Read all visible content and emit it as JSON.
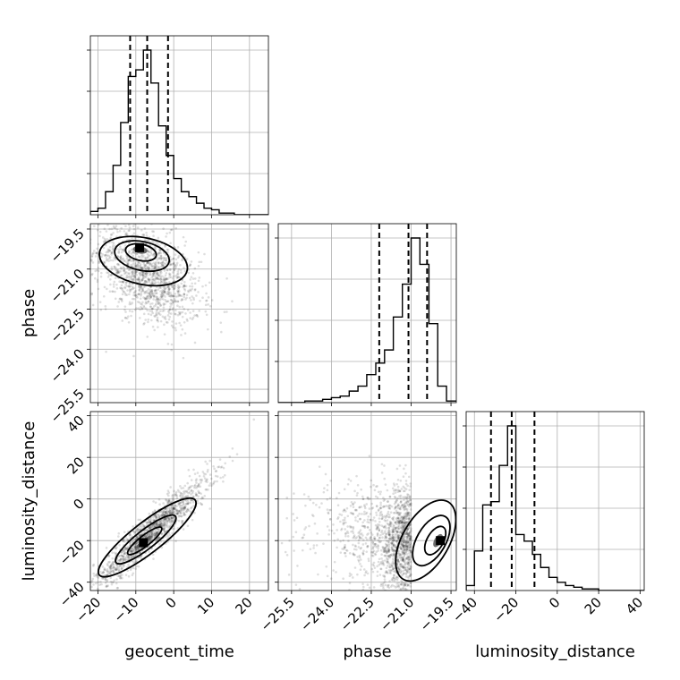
{
  "chart_data": {
    "type": "corner",
    "parameters": [
      {
        "label": "geocent_time",
        "range": [
          -22,
          25
        ],
        "ticks": [
          -20,
          -10,
          0,
          10,
          20
        ],
        "tick_labels": [
          "−20",
          "−10",
          "0",
          "10",
          "20"
        ],
        "quantiles": [
          -11.5,
          -7,
          -1.5
        ]
      },
      {
        "label": "phase",
        "range": [
          -26,
          -19.3
        ],
        "ticks": [
          -25.5,
          -24.0,
          -22.5,
          -21.0,
          -19.5
        ],
        "tick_labels": [
          "−25.5",
          "−24.0",
          "−22.5",
          "−21.0",
          "−19.5"
        ],
        "quantiles": [
          -22.2,
          -21.1,
          -20.4
        ]
      },
      {
        "label": "luminosity_distance",
        "range": [
          -44,
          42
        ],
        "ticks": [
          -40,
          -20,
          0,
          20,
          40
        ],
        "tick_labels": [
          "−40",
          "−20",
          "0",
          "20",
          "40"
        ],
        "quantiles": [
          -32,
          -22,
          -11
        ]
      }
    ],
    "histograms": [
      {
        "param": 0,
        "bin_edges": [
          -22,
          -20,
          -18,
          -16,
          -14,
          -12,
          -10,
          -8,
          -6,
          -4,
          -2,
          0,
          2,
          4,
          6,
          8,
          10,
          12,
          14,
          16,
          18,
          20,
          22,
          25
        ],
        "counts": [
          0.02,
          0.04,
          0.14,
          0.3,
          0.56,
          0.84,
          0.88,
          1.0,
          0.8,
          0.54,
          0.36,
          0.22,
          0.14,
          0.11,
          0.07,
          0.04,
          0.03,
          0.01,
          0.01,
          0,
          0,
          0,
          0
        ]
      },
      {
        "param": 1,
        "bin_edges": [
          -26,
          -25.67,
          -25.33,
          -25,
          -24.67,
          -24.33,
          -24,
          -23.67,
          -23.33,
          -23,
          -22.67,
          -22.33,
          -22,
          -21.67,
          -21.33,
          -21,
          -20.67,
          -20.33,
          -20,
          -19.67,
          -19.3
        ],
        "counts": [
          0,
          0,
          0,
          0.01,
          0.01,
          0.02,
          0.03,
          0.04,
          0.07,
          0.1,
          0.17,
          0.24,
          0.32,
          0.52,
          0.72,
          1.0,
          0.84,
          0.48,
          0.1,
          0.01
        ]
      },
      {
        "param": 2,
        "bin_edges": [
          -44,
          -40,
          -36,
          -32,
          -28,
          -24,
          -20,
          -16,
          -12,
          -8,
          -4,
          0,
          4,
          8,
          12,
          16,
          20,
          24,
          28,
          32,
          36,
          40,
          42
        ],
        "counts": [
          0.03,
          0.24,
          0.52,
          0.54,
          0.76,
          1.0,
          0.34,
          0.3,
          0.22,
          0.14,
          0.08,
          0.05,
          0.03,
          0.02,
          0.01,
          0.01,
          0,
          0,
          0,
          0,
          0,
          0
        ]
      }
    ],
    "joint": [
      {
        "x": 0,
        "y": 1,
        "trend": "negative",
        "peak": [
          -9,
          -20.2
        ],
        "center": [
          -7,
          -21.2
        ],
        "spread": [
          6,
          0.9
        ]
      },
      {
        "x": 0,
        "y": 2,
        "trend": "positive",
        "peak": [
          -8,
          -21
        ],
        "center": [
          -6,
          -16
        ],
        "spread": [
          7,
          13
        ]
      },
      {
        "x": 1,
        "y": 2,
        "trend": "weak-negative",
        "peak": [
          -19.9,
          -20
        ],
        "center": [
          -21.0,
          -20
        ],
        "spread": [
          1.0,
          12
        ]
      }
    ]
  }
}
